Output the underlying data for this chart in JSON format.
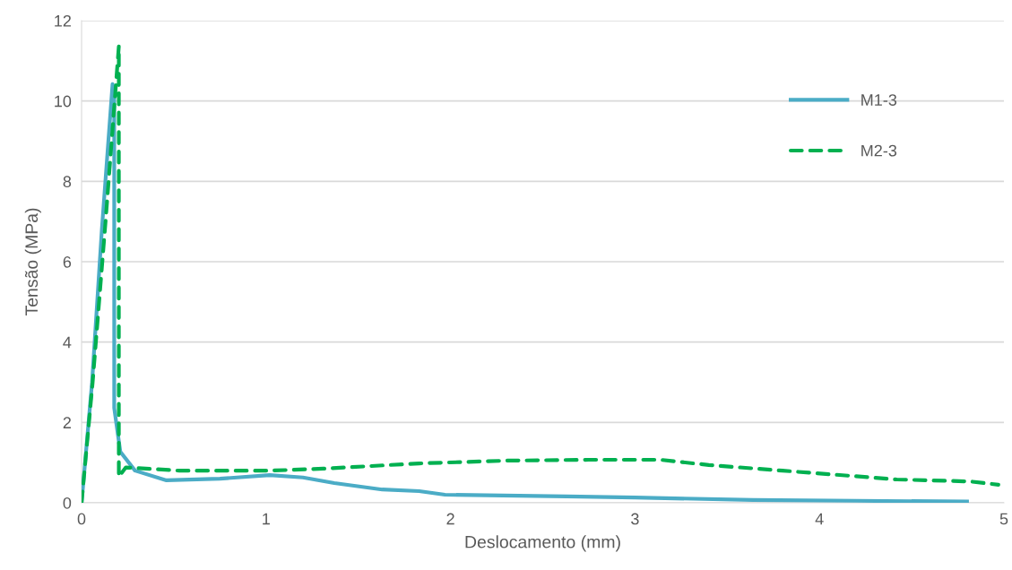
{
  "chart_data": {
    "type": "line",
    "xlabel": "Deslocamento (mm)",
    "ylabel": "Tensão (MPa)",
    "xlim": [
      0,
      5
    ],
    "xticks": [
      0,
      1,
      2,
      3,
      4,
      5
    ],
    "ylim": [
      0,
      12
    ],
    "yticks": [
      0,
      2,
      4,
      6,
      8,
      10,
      12
    ],
    "grid": "y",
    "legend": "right",
    "marker": "none",
    "series": [
      {
        "name": "M1-3",
        "color": "#4bacc6",
        "line_style": "solid",
        "x": [
          0,
          0.057,
          0.11,
          0.168,
          0.177,
          0.177,
          0.21,
          0.29,
          0.46,
          0.75,
          1.02,
          1.2,
          1.37,
          1.63,
          1.83,
          1.97,
          2.63,
          3.0,
          3.64,
          4.2,
          4.8
        ],
        "values": [
          0,
          3.0,
          6.8,
          10.42,
          10.2,
          2.36,
          1.27,
          0.8,
          0.56,
          0.6,
          0.69,
          0.63,
          0.49,
          0.33,
          0.29,
          0.2,
          0.16,
          0.13,
          0.07,
          0.05,
          0.03
        ]
      },
      {
        "name": "M2-3",
        "color": "#00b050",
        "line_style": "dashed",
        "x": [
          0,
          0.06,
          0.13,
          0.202,
          0.202,
          0.24,
          0.53,
          1.02,
          1.31,
          1.83,
          2.31,
          2.75,
          3.14,
          3.4,
          3.8,
          4.17,
          4.42,
          4.82,
          4.97
        ],
        "values": [
          0,
          3.0,
          7.0,
          11.36,
          0.65,
          0.88,
          0.8,
          0.8,
          0.85,
          0.98,
          1.05,
          1.07,
          1.07,
          0.94,
          0.8,
          0.67,
          0.58,
          0.53,
          0.45
        ]
      }
    ]
  }
}
